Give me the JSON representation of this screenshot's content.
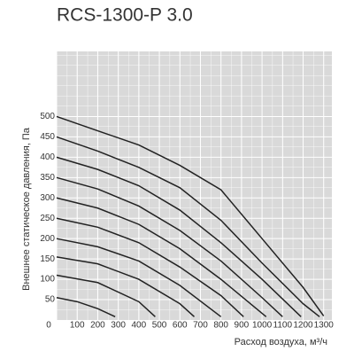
{
  "chart_data": {
    "type": "line",
    "title": "RCS-1300-P 3.0",
    "y_label": "Внешнее статическое давления, Па",
    "x_label": "Расход воздуха, м³/ч",
    "xlim": [
      0,
      1340
    ],
    "ylim": [
      0,
      660
    ],
    "xticks": [
      0,
      100,
      200,
      300,
      400,
      500,
      600,
      700,
      800,
      900,
      1000,
      1100,
      1200,
      1300
    ],
    "yticks": [
      50,
      100,
      150,
      200,
      250,
      300,
      350,
      400,
      450,
      500
    ],
    "grid": true,
    "color": "#222222",
    "background": "#d9d9d9",
    "series": [
      {
        "x": [
          0,
          200,
          400,
          600,
          800,
          1000,
          1200,
          1300
        ],
        "values": [
          500,
          465,
          430,
          380,
          320,
          200,
          80,
          10
        ]
      },
      {
        "x": [
          0,
          200,
          400,
          600,
          800,
          1000,
          1200,
          1280
        ],
        "values": [
          450,
          415,
          375,
          325,
          245,
          140,
          40,
          8
        ]
      },
      {
        "x": [
          0,
          200,
          400,
          600,
          800,
          1000,
          1190
        ],
        "values": [
          400,
          370,
          330,
          270,
          190,
          100,
          8
        ]
      },
      {
        "x": [
          0,
          200,
          400,
          600,
          800,
          1000,
          1100
        ],
        "values": [
          350,
          322,
          280,
          220,
          145,
          55,
          8
        ]
      },
      {
        "x": [
          0,
          200,
          400,
          600,
          800,
          1020
        ],
        "values": [
          300,
          275,
          235,
          175,
          100,
          8
        ]
      },
      {
        "x": [
          0,
          200,
          400,
          600,
          800,
          910
        ],
        "values": [
          250,
          228,
          190,
          130,
          60,
          8
        ]
      },
      {
        "x": [
          0,
          200,
          400,
          600,
          800
        ],
        "values": [
          200,
          180,
          145,
          85,
          8
        ]
      },
      {
        "x": [
          0,
          200,
          400,
          600,
          670
        ],
        "values": [
          155,
          138,
          100,
          40,
          8
        ]
      },
      {
        "x": [
          0,
          200,
          400,
          480
        ],
        "values": [
          110,
          92,
          45,
          8
        ]
      },
      {
        "x": [
          0,
          100,
          200,
          285
        ],
        "values": [
          55,
          45,
          28,
          8
        ]
      }
    ]
  }
}
